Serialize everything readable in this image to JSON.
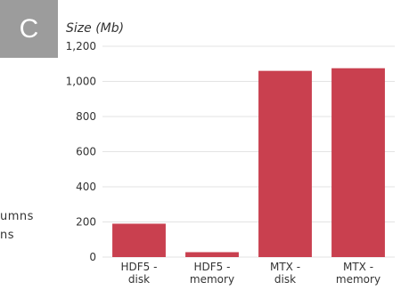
{
  "panel": {
    "label": "C"
  },
  "side_text": [
    "umns",
    "ns"
  ],
  "colors": {
    "bar": "#c9404f",
    "grid": "#e3e3e3",
    "text": "#333333"
  },
  "chart_data": {
    "type": "bar",
    "title": "Size (Mb)",
    "categories": [
      [
        "HDF5 -",
        "disk"
      ],
      [
        "HDF5 -",
        "memory"
      ],
      [
        "MTX -",
        "disk"
      ],
      [
        "MTX -",
        "memory"
      ]
    ],
    "values": [
      190,
      28,
      1060,
      1075
    ],
    "ylim": [
      0,
      1200
    ],
    "yticks": [
      0,
      200,
      400,
      600,
      800,
      1000,
      1200
    ],
    "ytick_labels": [
      "0",
      "200",
      "400",
      "600",
      "800",
      "1,000",
      "1,200"
    ],
    "grid": true,
    "xlabel": "",
    "ylabel": ""
  }
}
